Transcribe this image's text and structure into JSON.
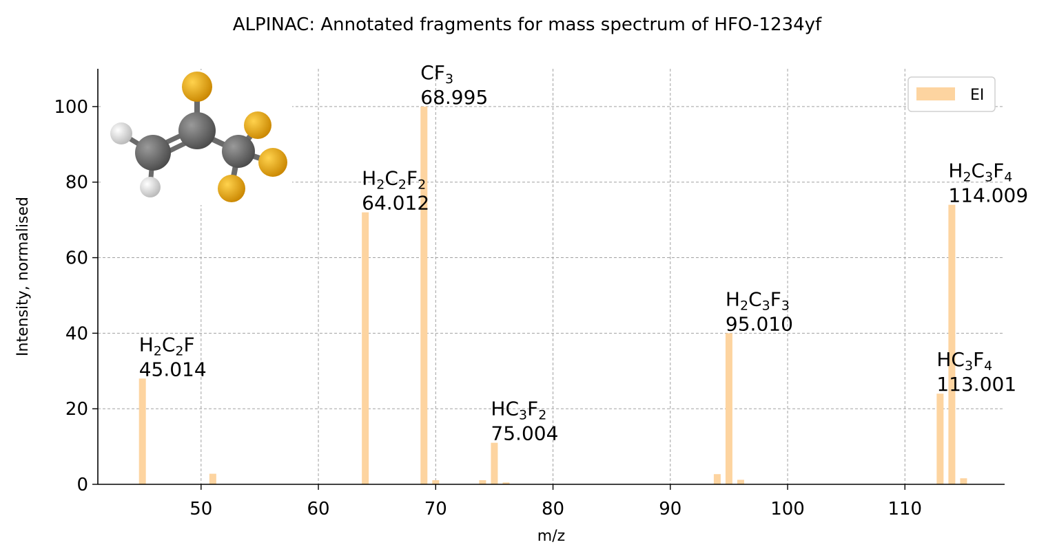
{
  "chart_data": {
    "type": "bar",
    "title": "ALPINAC: Annotated fragments for mass spectrum of HFO-1234yf",
    "xlabel": "m/z",
    "ylabel": "Intensity, normalised",
    "xlim": [
      41.2,
      118.5
    ],
    "ylim": [
      0,
      110
    ],
    "xticks": [
      50,
      60,
      70,
      80,
      90,
      100,
      110
    ],
    "yticks": [
      0,
      20,
      40,
      60,
      80,
      100
    ],
    "grid": true,
    "legend_position": "top-right",
    "series": [
      {
        "name": "EI",
        "color": "#fdd4a0",
        "points": [
          {
            "x": 45,
            "y": 28
          },
          {
            "x": 51,
            "y": 2.8
          },
          {
            "x": 64,
            "y": 72
          },
          {
            "x": 69,
            "y": 100
          },
          {
            "x": 70,
            "y": 1.1
          },
          {
            "x": 74,
            "y": 1.1
          },
          {
            "x": 75,
            "y": 11
          },
          {
            "x": 76,
            "y": 0.5
          },
          {
            "x": 94,
            "y": 2.7
          },
          {
            "x": 95,
            "y": 40
          },
          {
            "x": 96,
            "y": 1.2
          },
          {
            "x": 113,
            "y": 24
          },
          {
            "x": 114,
            "y": 74
          },
          {
            "x": 115,
            "y": 1.6
          }
        ]
      }
    ],
    "annotations": [
      {
        "x": 45,
        "y": 28,
        "formula": [
          [
            "H",
            ""
          ],
          [
            "2",
            "sub"
          ],
          [
            "C",
            ""
          ],
          [
            "2",
            "sub"
          ],
          [
            "F",
            ""
          ]
        ],
        "mass": "45.014"
      },
      {
        "x": 64,
        "y": 72,
        "formula": [
          [
            "H",
            ""
          ],
          [
            "2",
            "sub"
          ],
          [
            "C",
            ""
          ],
          [
            "2",
            "sub"
          ],
          [
            "F",
            ""
          ],
          [
            "2",
            "sub"
          ]
        ],
        "mass": "64.012"
      },
      {
        "x": 69,
        "y": 100,
        "formula": [
          [
            "CF",
            ""
          ],
          [
            "3",
            "sub"
          ]
        ],
        "mass": "68.995"
      },
      {
        "x": 75,
        "y": 11,
        "formula": [
          [
            "HC",
            ""
          ],
          [
            "3",
            "sub"
          ],
          [
            "F",
            ""
          ],
          [
            "2",
            "sub"
          ]
        ],
        "mass": "75.004"
      },
      {
        "x": 95,
        "y": 40,
        "formula": [
          [
            "H",
            ""
          ],
          [
            "2",
            "sub"
          ],
          [
            "C",
            ""
          ],
          [
            "3",
            "sub"
          ],
          [
            "F",
            ""
          ],
          [
            "3",
            "sub"
          ]
        ],
        "mass": "95.010"
      },
      {
        "x": 113,
        "y": 24,
        "formula": [
          [
            "HC",
            ""
          ],
          [
            "3",
            "sub"
          ],
          [
            "F",
            ""
          ],
          [
            "4",
            "sub"
          ]
        ],
        "mass": "113.001"
      },
      {
        "x": 114,
        "y": 74,
        "formula": [
          [
            "H",
            ""
          ],
          [
            "2",
            "sub"
          ],
          [
            "C",
            ""
          ],
          [
            "3",
            "sub"
          ],
          [
            "F",
            ""
          ],
          [
            "4",
            "sub"
          ]
        ],
        "mass": "114.009"
      }
    ]
  },
  "molecule_inset": {
    "icon": "molecule-ball-and-stick-icon",
    "colors": {
      "carbon": "#4a4a4a",
      "hydrogen": "#e8e8e8",
      "fluorine": "#f0a000"
    }
  }
}
